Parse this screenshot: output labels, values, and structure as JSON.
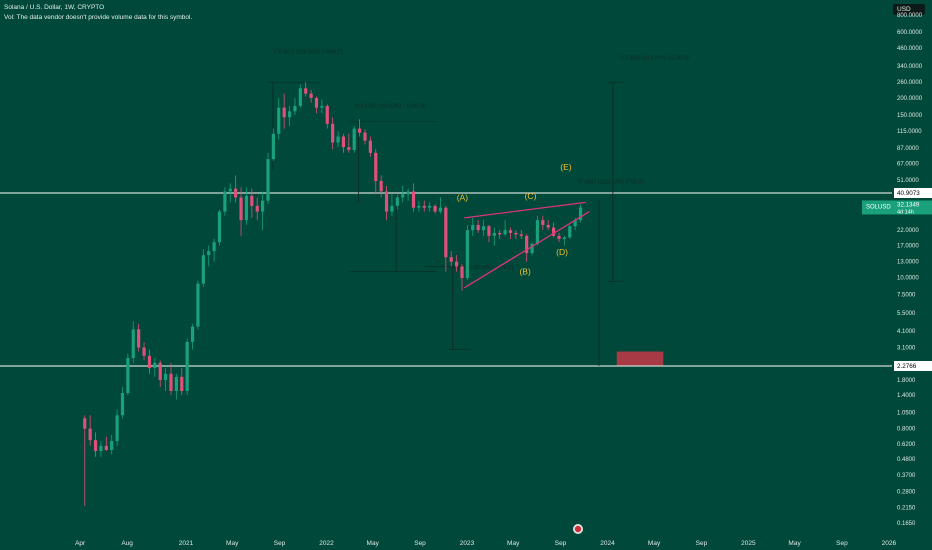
{
  "header": {
    "symbol_line": "Solana / U.S. Dollar, 1W, CRYPTO",
    "volume_note": "Vol: The data vendor doesn't provide volume data for this symbol."
  },
  "currency_button": "USD",
  "colors": {
    "background": "#00483a",
    "up_candle": "#1aa07b",
    "down_candle": "#e0507a",
    "wedge_line": "#d8357a",
    "wave_label": "#f2c230",
    "level_line": "#ffffff",
    "price_tag_bg": "#ffffff",
    "last_price_bg": "#1aa07b",
    "target_box": "#a83a45",
    "axis_text": "#dfe9e4"
  },
  "chart_data": {
    "type": "candlestick",
    "title": "Solana / U.S. Dollar, 1W, CRYPTO",
    "symbol": "SOLUSD",
    "interval": "1W",
    "y_scale": "log",
    "ylim": [
      0.12,
      1100
    ],
    "y_axis_labels": [
      "800.0000",
      "600.0000",
      "460.0000",
      "340.0000",
      "260.0000",
      "200.0000",
      "150.0000",
      "115.0000",
      "87.0000",
      "67.0000",
      "51.0000",
      "22.0000",
      "17.0000",
      "13.0000",
      "10.0000",
      "7.5000",
      "5.5000",
      "4.1000",
      "3.1000",
      "1.8000",
      "1.4000",
      "1.0500",
      "0.8000",
      "0.6200",
      "0.4800",
      "0.3700",
      "0.2800",
      "0.2150",
      "0.1650"
    ],
    "x_axis_labels": [
      "Apr",
      "Aug",
      "2021",
      "May",
      "Sep",
      "2022",
      "May",
      "Sep",
      "2023",
      "May",
      "Sep",
      "2024",
      "May",
      "Sep",
      "2025",
      "May",
      "Sep",
      "2026"
    ],
    "x_axis_dates": [
      "2020-04-01",
      "2020-08-01",
      "2021-01-01",
      "2021-05-01",
      "2021-09-01",
      "2022-01-01",
      "2022-05-01",
      "2022-09-01",
      "2023-01-01",
      "2023-05-01",
      "2023-09-01",
      "2024-01-01",
      "2024-05-01",
      "2024-09-01",
      "2025-01-01",
      "2025-05-01",
      "2025-09-01",
      "2026-01-01"
    ],
    "price_tags": [
      {
        "value": "40.9073",
        "price": 40.9073,
        "style": "white"
      },
      {
        "value": "32.1349",
        "price": 32.1349,
        "style": "last",
        "symbol": "SOLUSD",
        "countdown": "4d 14h"
      },
      {
        "value": "2.2766",
        "price": 2.2766,
        "style": "white"
      }
    ],
    "horizontal_levels": [
      40.9073,
      2.2766
    ],
    "wave_labels": [
      {
        "text": "(A)",
        "date": "2022-12-20",
        "price": 36
      },
      {
        "text": "(B)",
        "date": "2023-06-01",
        "price": 10.5
      },
      {
        "text": "(C)",
        "date": "2023-06-15",
        "price": 37
      },
      {
        "text": "(D)",
        "date": "2023-09-05",
        "price": 14.5
      },
      {
        "text": "(E)",
        "date": "2023-09-15",
        "price": 60
      }
    ],
    "wedge": {
      "upper": [
        [
          "2022-12-25",
          27
        ],
        [
          "2023-11-05",
          35
        ]
      ],
      "lower": [
        [
          "2022-12-25",
          8.4
        ],
        [
          "2023-11-15",
          30
        ]
      ]
    },
    "target_zone": {
      "start": "2024-01-25",
      "end": "2024-05-25",
      "high": 2.9,
      "low": 2.3
    },
    "measurements": [
      {
        "text": "176.9671 (328.55%) 17696.71",
        "date": "2021-08-15",
        "price": 420
      },
      {
        "text": "113.4781 (−64.03%) −11347.81",
        "date": "2022-03-15",
        "price": 170
      },
      {
        "text": "−6.3991 (−28.89%) −639.91",
        "date": "2022-11-15",
        "price": 11.5
      },
      {
        "text": "37.0807 (1115.22%) 3708.07",
        "date": "2023-10-15",
        "price": 48
      },
      {
        "text": "217.9065 (313.20%) 21790.65",
        "date": "2024-02-01",
        "price": 380
      }
    ],
    "candles": [
      {
        "t": "2020-04-13",
        "o": 0.95,
        "h": 1.0,
        "l": 0.22,
        "c": 0.8
      },
      {
        "t": "2020-04-27",
        "o": 0.8,
        "h": 1.0,
        "l": 0.6,
        "c": 0.66
      },
      {
        "t": "2020-05-11",
        "o": 0.66,
        "h": 0.75,
        "l": 0.5,
        "c": 0.55
      },
      {
        "t": "2020-05-25",
        "o": 0.55,
        "h": 0.65,
        "l": 0.5,
        "c": 0.6
      },
      {
        "t": "2020-06-08",
        "o": 0.6,
        "h": 0.7,
        "l": 0.55,
        "c": 0.56
      },
      {
        "t": "2020-06-22",
        "o": 0.56,
        "h": 0.72,
        "l": 0.52,
        "c": 0.65
      },
      {
        "t": "2020-07-06",
        "o": 0.65,
        "h": 1.1,
        "l": 0.6,
        "c": 1.0
      },
      {
        "t": "2020-07-20",
        "o": 1.0,
        "h": 1.6,
        "l": 0.95,
        "c": 1.45
      },
      {
        "t": "2020-08-03",
        "o": 1.45,
        "h": 2.8,
        "l": 1.4,
        "c": 2.6
      },
      {
        "t": "2020-08-17",
        "o": 2.6,
        "h": 4.8,
        "l": 2.4,
        "c": 4.2
      },
      {
        "t": "2020-08-31",
        "o": 4.2,
        "h": 4.6,
        "l": 2.9,
        "c": 3.1
      },
      {
        "t": "2020-09-14",
        "o": 3.1,
        "h": 3.4,
        "l": 2.5,
        "c": 2.7
      },
      {
        "t": "2020-09-28",
        "o": 2.7,
        "h": 3.0,
        "l": 2.0,
        "c": 2.2
      },
      {
        "t": "2020-10-12",
        "o": 2.2,
        "h": 2.6,
        "l": 1.9,
        "c": 2.4
      },
      {
        "t": "2020-10-26",
        "o": 2.4,
        "h": 2.5,
        "l": 1.6,
        "c": 1.8
      },
      {
        "t": "2020-11-09",
        "o": 1.8,
        "h": 2.2,
        "l": 1.5,
        "c": 2.0
      },
      {
        "t": "2020-11-23",
        "o": 2.0,
        "h": 2.4,
        "l": 1.4,
        "c": 1.5
      },
      {
        "t": "2020-12-07",
        "o": 1.5,
        "h": 2.0,
        "l": 1.3,
        "c": 1.9
      },
      {
        "t": "2020-12-21",
        "o": 1.9,
        "h": 2.2,
        "l": 1.4,
        "c": 1.5
      },
      {
        "t": "2021-01-04",
        "o": 1.5,
        "h": 3.6,
        "l": 1.4,
        "c": 3.4
      },
      {
        "t": "2021-01-18",
        "o": 3.4,
        "h": 4.6,
        "l": 3.0,
        "c": 4.4
      },
      {
        "t": "2021-02-01",
        "o": 4.4,
        "h": 9.5,
        "l": 4.2,
        "c": 9.0
      },
      {
        "t": "2021-02-15",
        "o": 9.0,
        "h": 16,
        "l": 8.5,
        "c": 14.5
      },
      {
        "t": "2021-03-01",
        "o": 14.5,
        "h": 17,
        "l": 12,
        "c": 15.5
      },
      {
        "t": "2021-03-15",
        "o": 15.5,
        "h": 19,
        "l": 13,
        "c": 18
      },
      {
        "t": "2021-03-29",
        "o": 18,
        "h": 31,
        "l": 17,
        "c": 30
      },
      {
        "t": "2021-04-12",
        "o": 30,
        "h": 45,
        "l": 28,
        "c": 42
      },
      {
        "t": "2021-04-26",
        "o": 42,
        "h": 48,
        "l": 35,
        "c": 44
      },
      {
        "t": "2021-05-10",
        "o": 44,
        "h": 55,
        "l": 35,
        "c": 38
      },
      {
        "t": "2021-05-24",
        "o": 38,
        "h": 45,
        "l": 20,
        "c": 26
      },
      {
        "t": "2021-06-07",
        "o": 26,
        "h": 45,
        "l": 24,
        "c": 39
      },
      {
        "t": "2021-06-21",
        "o": 39,
        "h": 44,
        "l": 27,
        "c": 33
      },
      {
        "t": "2021-07-05",
        "o": 33,
        "h": 38,
        "l": 26,
        "c": 30
      },
      {
        "t": "2021-07-19",
        "o": 30,
        "h": 42,
        "l": 22,
        "c": 36
      },
      {
        "t": "2021-08-02",
        "o": 36,
        "h": 80,
        "l": 34,
        "c": 72
      },
      {
        "t": "2021-08-16",
        "o": 72,
        "h": 120,
        "l": 70,
        "c": 110
      },
      {
        "t": "2021-08-30",
        "o": 110,
        "h": 200,
        "l": 100,
        "c": 170
      },
      {
        "t": "2021-09-13",
        "o": 170,
        "h": 215,
        "l": 120,
        "c": 145
      },
      {
        "t": "2021-09-27",
        "o": 145,
        "h": 175,
        "l": 125,
        "c": 160
      },
      {
        "t": "2021-10-11",
        "o": 160,
        "h": 200,
        "l": 150,
        "c": 175
      },
      {
        "t": "2021-10-25",
        "o": 175,
        "h": 250,
        "l": 170,
        "c": 235
      },
      {
        "t": "2021-11-08",
        "o": 235,
        "h": 260,
        "l": 205,
        "c": 215
      },
      {
        "t": "2021-11-22",
        "o": 215,
        "h": 230,
        "l": 185,
        "c": 200
      },
      {
        "t": "2021-12-06",
        "o": 200,
        "h": 205,
        "l": 155,
        "c": 170
      },
      {
        "t": "2021-12-20",
        "o": 170,
        "h": 195,
        "l": 155,
        "c": 175
      },
      {
        "t": "2022-01-03",
        "o": 175,
        "h": 180,
        "l": 120,
        "c": 130
      },
      {
        "t": "2022-01-17",
        "o": 130,
        "h": 145,
        "l": 85,
        "c": 95
      },
      {
        "t": "2022-01-31",
        "o": 95,
        "h": 115,
        "l": 88,
        "c": 105
      },
      {
        "t": "2022-02-14",
        "o": 105,
        "h": 110,
        "l": 80,
        "c": 88
      },
      {
        "t": "2022-02-28",
        "o": 88,
        "h": 110,
        "l": 80,
        "c": 84
      },
      {
        "t": "2022-03-14",
        "o": 84,
        "h": 125,
        "l": 80,
        "c": 120
      },
      {
        "t": "2022-03-28",
        "o": 120,
        "h": 140,
        "l": 105,
        "c": 112
      },
      {
        "t": "2022-04-11",
        "o": 112,
        "h": 118,
        "l": 92,
        "c": 98
      },
      {
        "t": "2022-04-25",
        "o": 98,
        "h": 105,
        "l": 75,
        "c": 80
      },
      {
        "t": "2022-05-09",
        "o": 80,
        "h": 85,
        "l": 40,
        "c": 50
      },
      {
        "t": "2022-05-23",
        "o": 50,
        "h": 55,
        "l": 38,
        "c": 42
      },
      {
        "t": "2022-06-06",
        "o": 42,
        "h": 46,
        "l": 26,
        "c": 30
      },
      {
        "t": "2022-06-20",
        "o": 30,
        "h": 40,
        "l": 28,
        "c": 33
      },
      {
        "t": "2022-07-04",
        "o": 33,
        "h": 40,
        "l": 31,
        "c": 38
      },
      {
        "t": "2022-07-18",
        "o": 38,
        "h": 46,
        "l": 35,
        "c": 40
      },
      {
        "t": "2022-08-01",
        "o": 40,
        "h": 44,
        "l": 36,
        "c": 42
      },
      {
        "t": "2022-08-15",
        "o": 42,
        "h": 48,
        "l": 30,
        "c": 32
      },
      {
        "t": "2022-08-29",
        "o": 32,
        "h": 36,
        "l": 30,
        "c": 33
      },
      {
        "t": "2022-09-12",
        "o": 33,
        "h": 36,
        "l": 30,
        "c": 32
      },
      {
        "t": "2022-09-26",
        "o": 32,
        "h": 35,
        "l": 30,
        "c": 33
      },
      {
        "t": "2022-10-10",
        "o": 33,
        "h": 34,
        "l": 29,
        "c": 30
      },
      {
        "t": "2022-10-24",
        "o": 30,
        "h": 38,
        "l": 29,
        "c": 32
      },
      {
        "t": "2022-11-07",
        "o": 32,
        "h": 33,
        "l": 11,
        "c": 14
      },
      {
        "t": "2022-11-21",
        "o": 14,
        "h": 15.5,
        "l": 12,
        "c": 13
      },
      {
        "t": "2022-12-05",
        "o": 13,
        "h": 14.5,
        "l": 11,
        "c": 12
      },
      {
        "t": "2022-12-19",
        "o": 12,
        "h": 12.5,
        "l": 8.0,
        "c": 9.9
      },
      {
        "t": "2023-01-02",
        "o": 9.9,
        "h": 24,
        "l": 9.6,
        "c": 22
      },
      {
        "t": "2023-01-16",
        "o": 22,
        "h": 27,
        "l": 20,
        "c": 24
      },
      {
        "t": "2023-01-30",
        "o": 24,
        "h": 26,
        "l": 21,
        "c": 22
      },
      {
        "t": "2023-02-13",
        "o": 22,
        "h": 26,
        "l": 20,
        "c": 23.5
      },
      {
        "t": "2023-02-27",
        "o": 23.5,
        "h": 24,
        "l": 18,
        "c": 20
      },
      {
        "t": "2023-03-13",
        "o": 20,
        "h": 23,
        "l": 17,
        "c": 21
      },
      {
        "t": "2023-03-27",
        "o": 21,
        "h": 22,
        "l": 19,
        "c": 20.5
      },
      {
        "t": "2023-04-10",
        "o": 20.5,
        "h": 26,
        "l": 20,
        "c": 22
      },
      {
        "t": "2023-04-24",
        "o": 22,
        "h": 23,
        "l": 19,
        "c": 21
      },
      {
        "t": "2023-05-08",
        "o": 21,
        "h": 22,
        "l": 19,
        "c": 20.5
      },
      {
        "t": "2023-05-22",
        "o": 20.5,
        "h": 22,
        "l": 19,
        "c": 20
      },
      {
        "t": "2023-06-05",
        "o": 20,
        "h": 20.5,
        "l": 13,
        "c": 15
      },
      {
        "t": "2023-06-19",
        "o": 15,
        "h": 18,
        "l": 14.5,
        "c": 17.5
      },
      {
        "t": "2023-07-03",
        "o": 17.5,
        "h": 28,
        "l": 17,
        "c": 26
      },
      {
        "t": "2023-07-17",
        "o": 26,
        "h": 28,
        "l": 22,
        "c": 24
      },
      {
        "t": "2023-07-31",
        "o": 24,
        "h": 26,
        "l": 22,
        "c": 23
      },
      {
        "t": "2023-08-14",
        "o": 23,
        "h": 25,
        "l": 19.5,
        "c": 20
      },
      {
        "t": "2023-08-28",
        "o": 20,
        "h": 21,
        "l": 18,
        "c": 19
      },
      {
        "t": "2023-09-11",
        "o": 19,
        "h": 20,
        "l": 17,
        "c": 19.5
      },
      {
        "t": "2023-09-25",
        "o": 19.5,
        "h": 24,
        "l": 19,
        "c": 23.5
      },
      {
        "t": "2023-10-09",
        "o": 23.5,
        "h": 27,
        "l": 22,
        "c": 26
      },
      {
        "t": "2023-10-23",
        "o": 26,
        "h": 34,
        "l": 25,
        "c": 32.1349
      }
    ]
  }
}
